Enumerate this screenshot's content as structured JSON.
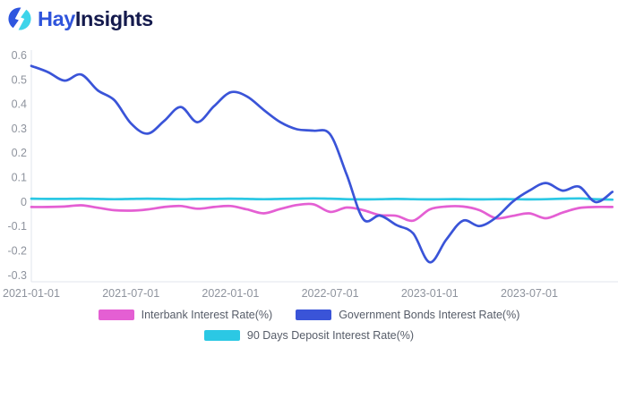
{
  "header": {
    "logo_hay": "Hay",
    "logo_insights": "Insights",
    "logo_colors": {
      "hay": "#2F54DB",
      "insights": "#141A4D",
      "icon_blue": "#2F56DF",
      "icon_cyan": "#3ED4EA"
    }
  },
  "colors": {
    "background": "#FFFFFF",
    "axis_line": "#E2E6EE",
    "tick_text": "#8E939D",
    "legend_text": "#565C68"
  },
  "chart_data": {
    "type": "line",
    "title": "",
    "xlabel": "",
    "ylabel": "",
    "grid": false,
    "legend_position": "bottom",
    "x": [
      "2021-01",
      "2021-02",
      "2021-03",
      "2021-04",
      "2021-05",
      "2021-06",
      "2021-07",
      "2021-08",
      "2021-09",
      "2021-10",
      "2021-11",
      "2021-12",
      "2022-01",
      "2022-02",
      "2022-03",
      "2022-04",
      "2022-05",
      "2022-06",
      "2022-07",
      "2022-08",
      "2022-09",
      "2022-10",
      "2022-11",
      "2022-12",
      "2023-01",
      "2023-02",
      "2023-03",
      "2023-04",
      "2023-05",
      "2023-06",
      "2023-07",
      "2023-08",
      "2023-09",
      "2023-10",
      "2023-11",
      "2023-12"
    ],
    "series": [
      {
        "key": "interbank",
        "name": "Interbank Interest Rate(%)",
        "color": "#E45FD3",
        "values": [
          -0.022,
          -0.022,
          -0.02,
          -0.015,
          -0.025,
          -0.035,
          -0.037,
          -0.032,
          -0.022,
          -0.018,
          -0.029,
          -0.022,
          -0.018,
          -0.032,
          -0.048,
          -0.03,
          -0.014,
          -0.011,
          -0.042,
          -0.024,
          -0.035,
          -0.055,
          -0.058,
          -0.078,
          -0.032,
          -0.02,
          -0.02,
          -0.035,
          -0.068,
          -0.058,
          -0.048,
          -0.068,
          -0.045,
          -0.026,
          -0.022,
          -0.022
        ]
      },
      {
        "key": "government-bonds",
        "name": "Government Bonds Interest Rate(%)",
        "color": "#3A54D8",
        "values": [
          0.555,
          0.53,
          0.495,
          0.52,
          0.455,
          0.415,
          0.32,
          0.278,
          0.33,
          0.387,
          0.325,
          0.39,
          0.447,
          0.43,
          0.375,
          0.325,
          0.296,
          0.29,
          0.275,
          0.11,
          -0.072,
          -0.057,
          -0.096,
          -0.13,
          -0.248,
          -0.155,
          -0.078,
          -0.1,
          -0.065,
          0.0,
          0.045,
          0.076,
          0.045,
          0.061,
          -0.002,
          0.04
        ]
      },
      {
        "key": "deposit-90d",
        "name": "90 Days Deposit Interest Rate(%)",
        "color": "#2BC8E4",
        "values": [
          0.012,
          0.011,
          0.011,
          0.012,
          0.011,
          0.01,
          0.011,
          0.012,
          0.011,
          0.01,
          0.011,
          0.011,
          0.012,
          0.011,
          0.01,
          0.011,
          0.012,
          0.013,
          0.012,
          0.01,
          0.009,
          0.01,
          0.011,
          0.01,
          0.009,
          0.01,
          0.01,
          0.009,
          0.01,
          0.01,
          0.009,
          0.01,
          0.012,
          0.013,
          0.01,
          0.008
        ]
      }
    ],
    "y_axis": {
      "min": -0.3,
      "max": 0.6,
      "ticks": [
        "0.6",
        "0.5",
        "0.4",
        "0.3",
        "0.2",
        "0.1",
        "0",
        "-0.1",
        "-0.2",
        "-0.3"
      ]
    },
    "x_ticks": [
      {
        "label": "2021-01-01",
        "month": 0
      },
      {
        "label": "2021-07-01",
        "month": 6
      },
      {
        "label": "2022-01-01",
        "month": 12
      },
      {
        "label": "2022-07-01",
        "month": 18
      },
      {
        "label": "2023-01-01",
        "month": 24
      },
      {
        "label": "2023-07-01",
        "month": 30
      }
    ]
  }
}
